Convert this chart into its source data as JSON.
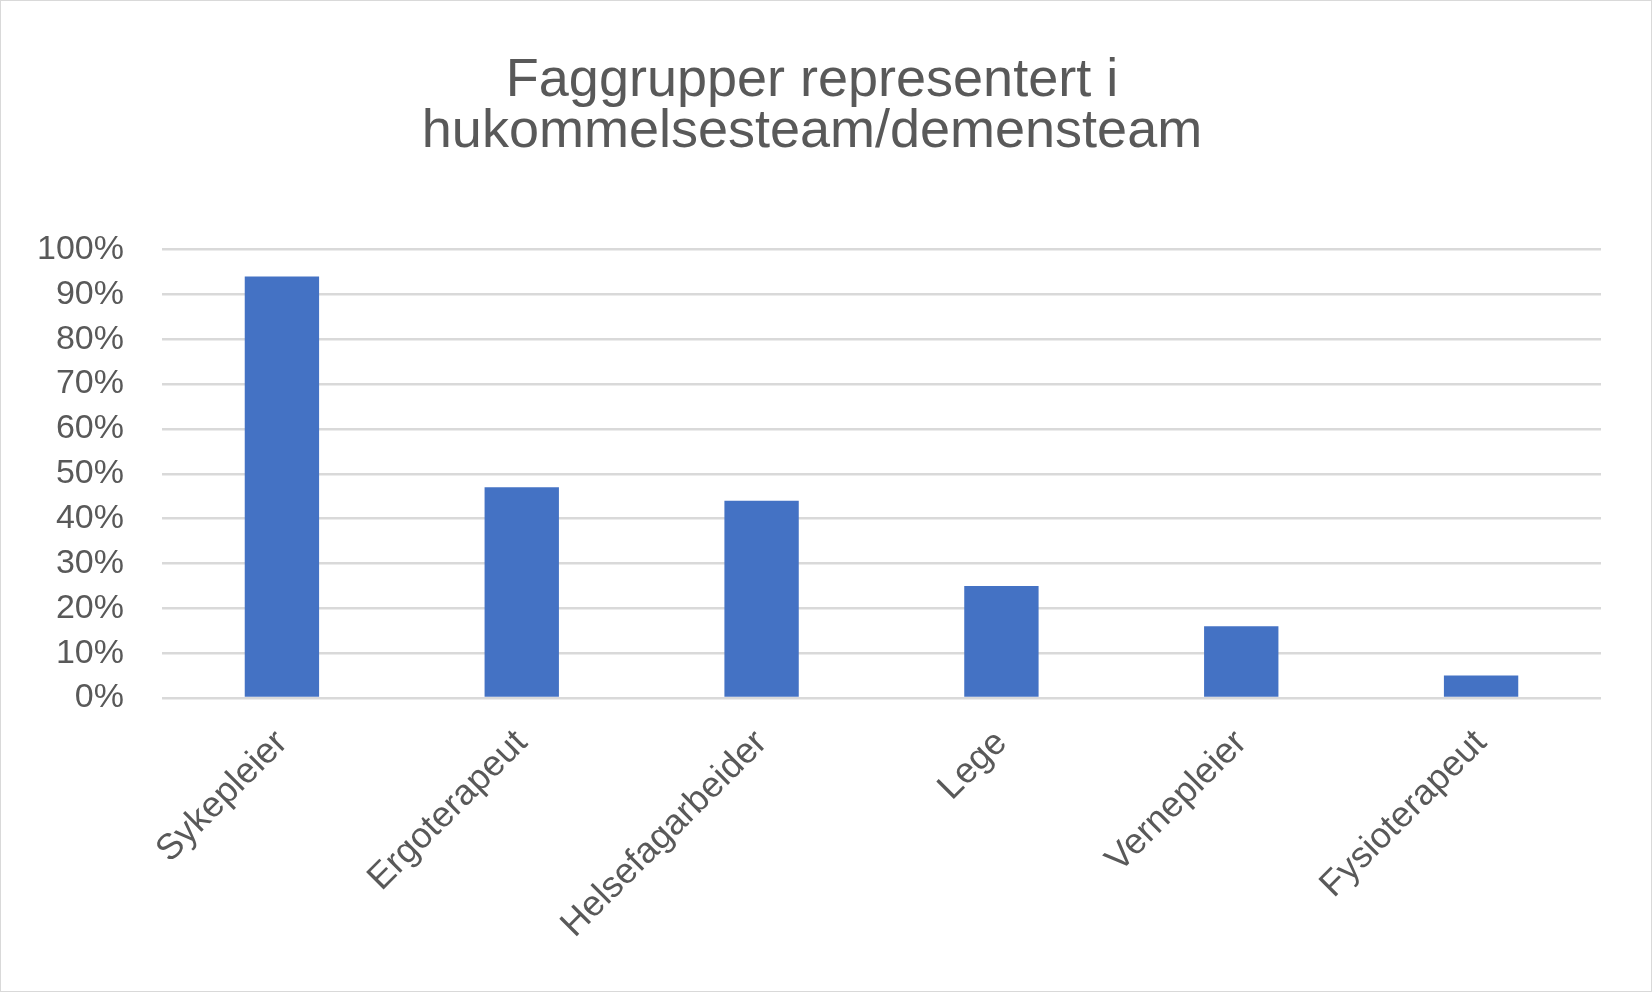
{
  "chart_data": {
    "type": "bar",
    "title": "Faggrupper representert i hukommelsesteam/demensteam",
    "categories": [
      "Sykepleier",
      "Ergoterapeut",
      "Helsefagarbeider",
      "Lege",
      "Vernepleier",
      "Fysioterapeut"
    ],
    "values": [
      94,
      47,
      44,
      25,
      16,
      5
    ],
    "color": "#4472c4",
    "ylim": [
      0,
      100
    ],
    "yticks": [
      {
        "value": 0,
        "label": "0%"
      },
      {
        "value": 10,
        "label": "10%"
      },
      {
        "value": 20,
        "label": "20%"
      },
      {
        "value": 30,
        "label": "30%"
      },
      {
        "value": 40,
        "label": "40%"
      },
      {
        "value": 50,
        "label": "50%"
      },
      {
        "value": 60,
        "label": "60%"
      },
      {
        "value": 70,
        "label": "70%"
      },
      {
        "value": 80,
        "label": "80%"
      },
      {
        "value": 90,
        "label": "90%"
      },
      {
        "value": 100,
        "label": "100%"
      }
    ],
    "grid": "y"
  }
}
